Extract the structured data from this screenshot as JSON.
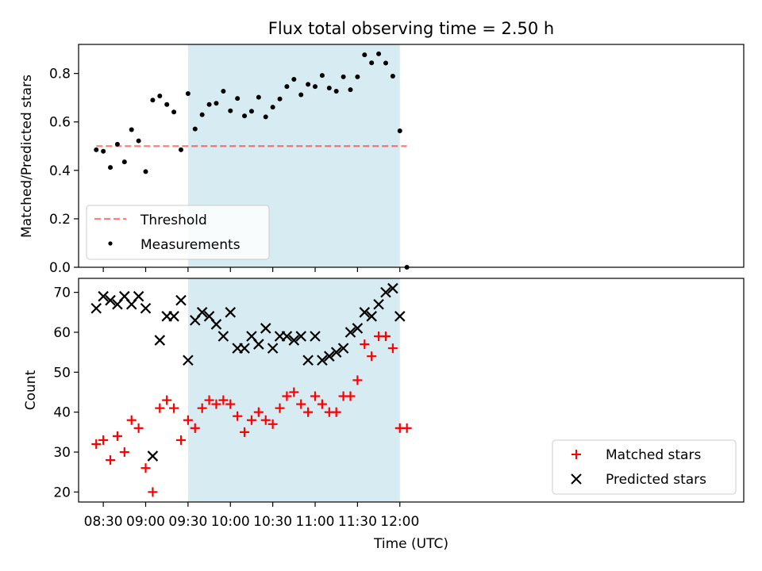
{
  "chart_data": [
    {
      "type": "scatter",
      "title": "Flux total observing time = 2.50 h",
      "xlabel": "",
      "ylabel": "Matched/Predicted stars",
      "ylim": [
        0.0,
        0.92
      ],
      "yticks": [
        0.0,
        0.2,
        0.4,
        0.6,
        0.8
      ],
      "ytick_labels": [
        "0.0",
        "0.2",
        "0.4",
        "0.6",
        "0.8"
      ],
      "xlim_minutes": [
        492.5,
        963.5
      ],
      "shaded_span": {
        "from": "09:30",
        "to": "12:00",
        "color": "#add8e6"
      },
      "legend_position": "lower left",
      "series": [
        {
          "name": "Threshold",
          "kind": "dashed-line",
          "color": "#ff0000",
          "x": [
            "08:25",
            "12:05"
          ],
          "y": [
            0.5,
            0.5
          ]
        },
        {
          "name": "Measurements",
          "kind": "dot",
          "color": "#000000",
          "x": [
            "08:25",
            "08:30",
            "08:35",
            "08:40",
            "08:45",
            "08:50",
            "08:55",
            "09:00",
            "09:05",
            "09:10",
            "09:15",
            "09:20",
            "09:25",
            "09:30",
            "09:35",
            "09:40",
            "09:45",
            "09:50",
            "09:55",
            "10:00",
            "10:05",
            "10:10",
            "10:15",
            "10:20",
            "10:25",
            "10:30",
            "10:35",
            "10:40",
            "10:45",
            "10:50",
            "10:55",
            "11:00",
            "11:05",
            "11:10",
            "11:15",
            "11:20",
            "11:25",
            "11:30",
            "11:35",
            "11:40",
            "11:45",
            "11:50",
            "11:55",
            "12:00",
            "12:05"
          ],
          "y": [
            0.485,
            0.479,
            0.412,
            0.508,
            0.435,
            0.568,
            0.522,
            0.395,
            0.69,
            0.707,
            0.672,
            0.641,
            0.485,
            0.717,
            0.571,
            0.63,
            0.672,
            0.677,
            0.727,
            0.646,
            0.697,
            0.625,
            0.644,
            0.702,
            0.621,
            0.661,
            0.695,
            0.746,
            0.776,
            0.712,
            0.755,
            0.746,
            0.792,
            0.74,
            0.727,
            0.786,
            0.733,
            0.786,
            0.877,
            0.844,
            0.881,
            0.843,
            0.789,
            0.563,
            0.0
          ]
        }
      ]
    },
    {
      "type": "scatter",
      "xlabel": "Time (UTC)",
      "ylabel": "Count",
      "ylim": [
        17.5,
        73.5
      ],
      "yticks": [
        20,
        30,
        40,
        50,
        60,
        70
      ],
      "ytick_labels": [
        "20",
        "30",
        "40",
        "50",
        "60",
        "70"
      ],
      "xticks": [
        "08:30",
        "09:00",
        "09:30",
        "10:00",
        "10:30",
        "11:00",
        "11:30",
        "12:00"
      ],
      "xlim_minutes": [
        492.5,
        963.5
      ],
      "shaded_span": {
        "from": "09:30",
        "to": "12:00",
        "color": "#add8e6"
      },
      "legend_position": "lower right",
      "series": [
        {
          "name": "Matched stars",
          "marker": "+",
          "color": "#ff0000",
          "x": [
            "08:25",
            "08:30",
            "08:35",
            "08:40",
            "08:45",
            "08:50",
            "08:55",
            "09:00",
            "09:05",
            "09:10",
            "09:15",
            "09:20",
            "09:25",
            "09:30",
            "09:35",
            "09:40",
            "09:45",
            "09:50",
            "09:55",
            "10:00",
            "10:05",
            "10:10",
            "10:15",
            "10:20",
            "10:25",
            "10:30",
            "10:35",
            "10:40",
            "10:45",
            "10:50",
            "10:55",
            "11:00",
            "11:05",
            "11:10",
            "11:15",
            "11:20",
            "11:25",
            "11:30",
            "11:35",
            "11:40",
            "11:45",
            "11:50",
            "11:55",
            "12:00",
            "12:05"
          ],
          "y": [
            32,
            33,
            28,
            34,
            30,
            38,
            36,
            26,
            20,
            41,
            43,
            41,
            33,
            38,
            36,
            41,
            43,
            42,
            43,
            42,
            39,
            35,
            38,
            40,
            38,
            37,
            41,
            44,
            45,
            42,
            40,
            44,
            42,
            40,
            40,
            44,
            44,
            48,
            57,
            54,
            59,
            59,
            56,
            36,
            36
          ]
        },
        {
          "name": "Predicted stars",
          "marker": "x",
          "color": "#000000",
          "x": [
            "08:25",
            "08:30",
            "08:35",
            "08:40",
            "08:45",
            "08:50",
            "08:55",
            "09:00",
            "09:05",
            "09:10",
            "09:15",
            "09:20",
            "09:25",
            "09:30",
            "09:35",
            "09:40",
            "09:45",
            "09:50",
            "09:55",
            "10:00",
            "10:05",
            "10:10",
            "10:15",
            "10:20",
            "10:25",
            "10:30",
            "10:35",
            "10:40",
            "10:45",
            "10:50",
            "10:55",
            "11:00",
            "11:05",
            "11:10",
            "11:15",
            "11:20",
            "11:25",
            "11:30",
            "11:35",
            "11:40",
            "11:45",
            "11:50",
            "11:55",
            "12:00"
          ],
          "y": [
            66,
            69,
            68,
            67,
            69,
            67,
            69,
            66,
            29,
            58,
            64,
            64,
            68,
            53,
            63,
            65,
            64,
            62,
            59,
            65,
            56,
            56,
            59,
            57,
            61,
            56,
            59,
            59,
            58,
            59,
            53,
            59,
            53,
            54,
            55,
            56,
            60,
            61,
            65,
            64,
            67,
            70,
            71,
            64
          ]
        }
      ]
    }
  ]
}
